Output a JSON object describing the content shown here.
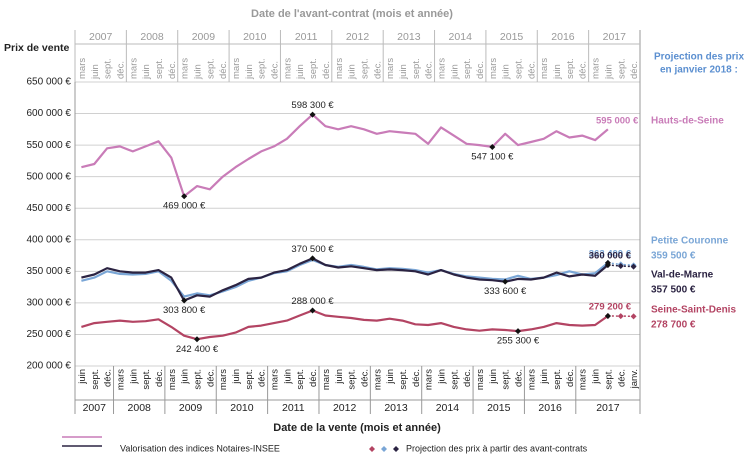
{
  "chart_data": {
    "type": "line",
    "title": "Date de l'avant-contrat (mois et année)",
    "x_label": "Date de la vente (mois et année)",
    "y_label": "Prix de vente",
    "categories": [
      "juin",
      "sept.",
      "déc.",
      "mars",
      "juin",
      "sept.",
      "déc.",
      "mars",
      "juin",
      "sept.",
      "déc.",
      "mars",
      "juin",
      "sept.",
      "déc.",
      "mars",
      "juin",
      "sept.",
      "déc.",
      "mars",
      "juin",
      "sept.",
      "déc.",
      "mars",
      "juin",
      "sept.",
      "déc.",
      "mars",
      "juin",
      "sept.",
      "déc.",
      "mars",
      "juin",
      "sept.",
      "déc.",
      "mars",
      "juin",
      "sept.",
      "déc.",
      "mars",
      "juin",
      "sept.",
      "déc.",
      "janv."
    ],
    "years": [
      "2007",
      "2008",
      "2009",
      "2010",
      "2011",
      "2012",
      "2013",
      "2014",
      "2015",
      "2016",
      "2017"
    ],
    "top_categories": [
      "mars",
      "juin",
      "sept.",
      "déc.",
      "mars",
      "juin",
      "sept.",
      "déc.",
      "mars",
      "juin",
      "sept.",
      "déc.",
      "mars",
      "juin",
      "sept.",
      "déc.",
      "mars",
      "juin",
      "sept.",
      "déc.",
      "mars",
      "juin",
      "sept.",
      "déc.",
      "mars",
      "juin",
      "sept.",
      "déc.",
      "mars",
      "juin",
      "sept.",
      "déc.",
      "mars",
      "juin",
      "sept.",
      "déc.",
      "mars",
      "juin",
      "sept.",
      "déc.",
      "mars",
      "juin",
      "sept.",
      "déc."
    ],
    "top_years": [
      "2007",
      "2008",
      "2009",
      "2010",
      "2011",
      "2012",
      "2013",
      "2014",
      "2015",
      "2016",
      "2017"
    ],
    "ylim": [
      200000,
      650000
    ],
    "yticks": [
      {
        "value": 200000,
        "label": "200 000 €"
      },
      {
        "value": 250000,
        "label": "250 000 €"
      },
      {
        "value": 300000,
        "label": "300 000 €"
      },
      {
        "value": 350000,
        "label": "350 000 €"
      },
      {
        "value": 400000,
        "label": "400 000 €"
      },
      {
        "value": 450000,
        "label": "450 000 €"
      },
      {
        "value": 500000,
        "label": "500 000 €"
      },
      {
        "value": 550000,
        "label": "550 000 €"
      },
      {
        "value": 600000,
        "label": "600 000 €"
      },
      {
        "value": 650000,
        "label": "650 000 €"
      }
    ],
    "grid": true,
    "projection_title": [
      "Projection des prix",
      "en janvier 2018 :"
    ],
    "annotations": [
      "595 000 €"
    ],
    "series": [
      {
        "name": "Hauts-de-Seine",
        "color": "#c97cb8",
        "values": [
          515000,
          520000,
          545000,
          548000,
          540000,
          548000,
          556000,
          530000,
          469000,
          485000,
          480000,
          500000,
          515000,
          528000,
          540000,
          548000,
          560000,
          580000,
          598300,
          580000,
          575000,
          580000,
          575000,
          568000,
          572000,
          570000,
          568000,
          552000,
          578000,
          565000,
          552000,
          550000,
          547100,
          568000,
          550000,
          555000,
          560000,
          572000,
          562000,
          565000,
          558000,
          575000,
          null,
          null
        ],
        "value_labels": [
          null,
          null,
          null,
          null,
          null,
          null,
          null,
          null,
          "469 000 €",
          null,
          null,
          null,
          null,
          null,
          null,
          null,
          null,
          null,
          "598 300 €",
          null,
          null,
          null,
          null,
          null,
          null,
          null,
          null,
          null,
          null,
          null,
          null,
          null,
          "547 100 €",
          null,
          null,
          null,
          null,
          null,
          null,
          null,
          null,
          null,
          null,
          null
        ]
      },
      {
        "name": "Petite Couronne",
        "color": "#7aa6d6",
        "values": [
          335000,
          340000,
          350000,
          346000,
          345000,
          346000,
          350000,
          335000,
          310000,
          315000,
          312000,
          318000,
          325000,
          335000,
          340000,
          347000,
          350000,
          360000,
          368000,
          360000,
          357000,
          360000,
          357000,
          353000,
          355000,
          354000,
          352000,
          348000,
          352000,
          346000,
          342000,
          340000,
          338000,
          337000,
          343000,
          338000,
          340000,
          344000,
          350000,
          345000,
          347000,
          363400,
          null,
          null
        ],
        "value_labels": [
          null,
          null,
          null,
          null,
          null,
          null,
          null,
          null,
          null,
          null,
          null,
          null,
          null,
          null,
          null,
          null,
          null,
          null,
          null,
          null,
          null,
          null,
          null,
          null,
          null,
          null,
          null,
          null,
          null,
          null,
          null,
          null,
          null,
          null,
          null,
          null,
          null,
          null,
          null,
          null,
          null,
          "363 400 €",
          null,
          null
        ],
        "projection_values": [
          null,
          null,
          null,
          null,
          null,
          null,
          null,
          null,
          null,
          null,
          null,
          null,
          null,
          null,
          null,
          null,
          null,
          null,
          null,
          null,
          null,
          null,
          null,
          null,
          null,
          null,
          null,
          null,
          null,
          null,
          null,
          null,
          null,
          null,
          null,
          null,
          null,
          null,
          null,
          null,
          null,
          363400,
          361000,
          359500
        ],
        "projection_label": "359 500 €"
      },
      {
        "name": "Val-de-Marne",
        "color": "#2b2342",
        "values": [
          340000,
          345000,
          355000,
          350000,
          348000,
          348000,
          352000,
          340000,
          303800,
          312000,
          310000,
          320000,
          328000,
          338000,
          340000,
          348000,
          352000,
          362000,
          370500,
          360000,
          356000,
          358000,
          355000,
          352000,
          353000,
          352000,
          350000,
          345000,
          352000,
          345000,
          340000,
          337000,
          336000,
          333600,
          338000,
          337000,
          340000,
          348000,
          342000,
          345000,
          343000,
          360000,
          null,
          null
        ],
        "value_labels": [
          null,
          null,
          null,
          null,
          null,
          null,
          null,
          null,
          "303 800 €",
          null,
          null,
          null,
          null,
          null,
          null,
          null,
          null,
          null,
          "370 500 €",
          null,
          null,
          null,
          null,
          null,
          null,
          null,
          null,
          null,
          null,
          null,
          null,
          null,
          null,
          "333 600 €",
          null,
          null,
          null,
          null,
          null,
          null,
          null,
          "360 000 €",
          null,
          null
        ],
        "projection_values": [
          null,
          null,
          null,
          null,
          null,
          null,
          null,
          null,
          null,
          null,
          null,
          null,
          null,
          null,
          null,
          null,
          null,
          null,
          null,
          null,
          null,
          null,
          null,
          null,
          null,
          null,
          null,
          null,
          null,
          null,
          null,
          null,
          null,
          null,
          null,
          null,
          null,
          null,
          null,
          null,
          null,
          360000,
          358500,
          357500
        ],
        "projection_label": "357 500 €"
      },
      {
        "name": "Seine-Saint-Denis",
        "color": "#b34463",
        "values": [
          262000,
          268000,
          270000,
          272000,
          270000,
          271000,
          274000,
          262000,
          248000,
          242400,
          246000,
          248000,
          253000,
          262000,
          264000,
          268000,
          272000,
          280000,
          288000,
          280000,
          278000,
          276000,
          273000,
          272000,
          275000,
          272000,
          266000,
          265000,
          268000,
          262000,
          258000,
          256000,
          258000,
          257000,
          255300,
          258000,
          262000,
          268000,
          265000,
          264000,
          265000,
          279200,
          null,
          null
        ],
        "value_labels": [
          null,
          null,
          null,
          null,
          null,
          null,
          null,
          null,
          null,
          "242 400 €",
          null,
          null,
          null,
          null,
          null,
          null,
          null,
          null,
          "288 000 €",
          null,
          null,
          null,
          null,
          null,
          null,
          null,
          null,
          null,
          null,
          null,
          null,
          null,
          null,
          null,
          "255 300 €",
          null,
          null,
          null,
          null,
          null,
          null,
          "279 200 €",
          null,
          null
        ],
        "projection_values": [
          null,
          null,
          null,
          null,
          null,
          null,
          null,
          null,
          null,
          null,
          null,
          null,
          null,
          null,
          null,
          null,
          null,
          null,
          null,
          null,
          null,
          null,
          null,
          null,
          null,
          null,
          null,
          null,
          null,
          null,
          null,
          null,
          null,
          null,
          null,
          null,
          null,
          null,
          null,
          null,
          null,
          279200,
          279000,
          278700
        ],
        "projection_label": "278 700 €"
      }
    ],
    "legend": [
      "Valorisation des indices Notaires-INSEE",
      "Projection des prix à partir des avant-contrats"
    ]
  }
}
